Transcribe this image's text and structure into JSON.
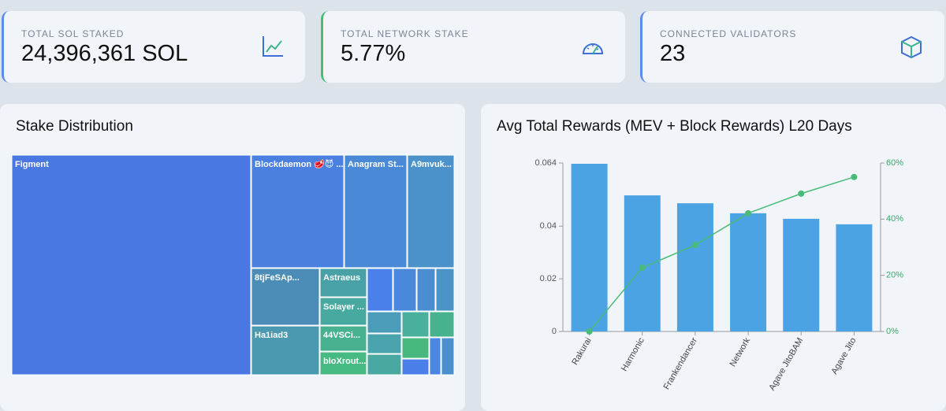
{
  "cards": [
    {
      "label": "TOTAL SOL STAKED",
      "value": "24,396,361 SOL"
    },
    {
      "label": "TOTAL NETWORK STAKE",
      "value": "5.77%"
    },
    {
      "label": "CONNECTED VALIDATORS",
      "value": "23"
    }
  ],
  "treemap": {
    "title": "Stake Distribution",
    "labels": [
      "Figment",
      "Blockdaemon 🥩😈 ...",
      "Anagram St...",
      "A9mvuk...",
      "8tjFeSAp...",
      "Astraeus",
      "Solayer ...",
      "Ha1iad3",
      "44VSCi...",
      "bloXrout..."
    ]
  },
  "chart_data": {
    "type": "bar",
    "title": "Avg Total Rewards (MEV + Block Rewards) L20 Days",
    "categories": [
      "Rakurai",
      "Harmonic",
      "Frankendancer",
      "Network",
      "Agave JitoBAM",
      "Agave Jito"
    ],
    "series": [
      {
        "color": "#4ba3e3",
        "values": [
          0.0637,
          0.0517,
          0.0487,
          0.0449,
          0.0428,
          0.0407
        ]
      },
      {
        "color": "#48bb78",
        "type": "line",
        "axis": "y2",
        "values": [
          0,
          22.7,
          30.8,
          42.1,
          49.1,
          55.0
        ]
      }
    ],
    "ylim": [
      0,
      0.064
    ],
    "yticks": [
      0,
      0.02,
      0.04,
      0.064
    ],
    "y2lim": [
      0,
      60
    ],
    "y2ticks": [
      {
        "value": 0,
        "label": "0%"
      },
      {
        "value": 20,
        "label": "20%"
      },
      {
        "value": 40,
        "label": "40%"
      },
      {
        "value": 60,
        "label": "60%"
      }
    ]
  }
}
